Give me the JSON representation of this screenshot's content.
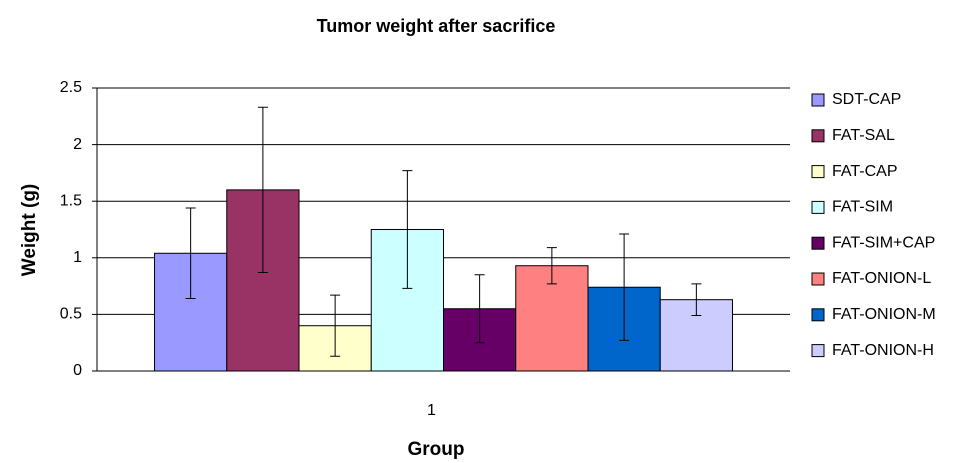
{
  "chart_data": {
    "type": "bar",
    "title": "Tumor weight after sacrifice",
    "x_label": "Group",
    "y_label": "Weight (g)",
    "categories": [
      "1"
    ],
    "series": [
      {
        "name": "SDT-CAP",
        "color": "#9999ff",
        "values": [
          1.04
        ],
        "errors": [
          0.4
        ]
      },
      {
        "name": "FAT-SAL",
        "color": "#993366",
        "values": [
          1.6
        ],
        "errors": [
          0.73
        ]
      },
      {
        "name": "FAT-CAP",
        "color": "#ffffcc",
        "values": [
          0.4
        ],
        "errors": [
          0.27
        ]
      },
      {
        "name": "FAT-SIM",
        "color": "#ccffff",
        "values": [
          1.25
        ],
        "errors": [
          0.52
        ]
      },
      {
        "name": "FAT-SIM+CAP",
        "color": "#660066",
        "values": [
          0.55
        ],
        "errors": [
          0.3
        ]
      },
      {
        "name": "FAT-ONION-L",
        "color": "#ff8080",
        "values": [
          0.93
        ],
        "errors": [
          0.16
        ]
      },
      {
        "name": "FAT-ONION-M",
        "color": "#0066cc",
        "values": [
          0.74
        ],
        "errors": [
          0.47
        ]
      },
      {
        "name": "FAT-ONION-H",
        "color": "#ccccff",
        "values": [
          0.63
        ],
        "errors": [
          0.14
        ]
      }
    ],
    "ylim": [
      0,
      2.5
    ],
    "yticks": [
      0,
      0.5,
      1,
      1.5,
      2,
      2.5
    ],
    "grid": true,
    "legend": "right"
  }
}
